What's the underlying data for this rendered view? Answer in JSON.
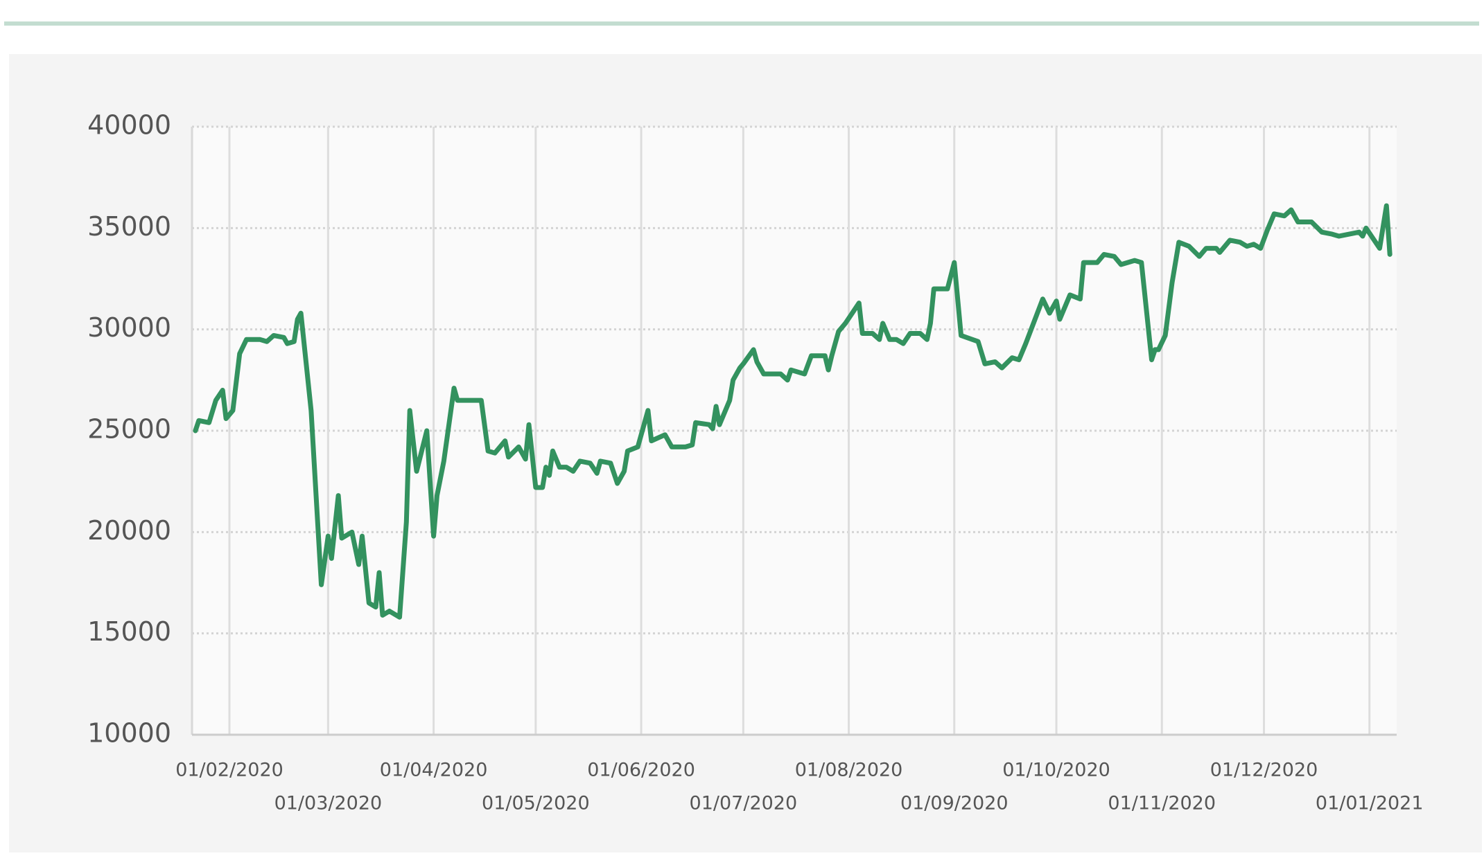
{
  "chart_data": {
    "type": "line",
    "x": [
      "2020-01-22",
      "2020-01-23",
      "2020-01-26",
      "2020-01-28",
      "2020-01-30",
      "2020-01-31",
      "2020-02-02",
      "2020-02-04",
      "2020-02-06",
      "2020-02-10",
      "2020-02-12",
      "2020-02-14",
      "2020-02-17",
      "2020-02-18",
      "2020-02-20",
      "2020-02-21",
      "2020-02-22",
      "2020-02-25",
      "2020-02-28",
      "2020-03-01",
      "2020-03-02",
      "2020-03-04",
      "2020-03-05",
      "2020-03-08",
      "2020-03-10",
      "2020-03-11",
      "2020-03-13",
      "2020-03-15",
      "2020-03-16",
      "2020-03-17",
      "2020-03-19",
      "2020-03-22",
      "2020-03-24",
      "2020-03-25",
      "2020-03-27",
      "2020-03-30",
      "2020-04-01",
      "2020-04-02",
      "2020-04-04",
      "2020-04-07",
      "2020-04-08",
      "2020-04-15",
      "2020-04-17",
      "2020-04-19",
      "2020-04-22",
      "2020-04-23",
      "2020-04-26",
      "2020-04-28",
      "2020-04-29",
      "2020-05-01",
      "2020-05-03",
      "2020-05-04",
      "2020-05-05",
      "2020-05-06",
      "2020-05-08",
      "2020-05-10",
      "2020-05-12",
      "2020-05-14",
      "2020-05-17",
      "2020-05-19",
      "2020-05-20",
      "2020-05-23",
      "2020-05-25",
      "2020-05-27",
      "2020-05-28",
      "2020-05-31",
      "2020-06-03",
      "2020-06-04",
      "2020-06-08",
      "2020-06-10",
      "2020-06-14",
      "2020-06-16",
      "2020-06-17",
      "2020-06-21",
      "2020-06-22",
      "2020-06-23",
      "2020-06-24",
      "2020-06-27",
      "2020-06-28",
      "2020-06-30",
      "2020-07-01",
      "2020-07-04",
      "2020-07-05",
      "2020-07-07",
      "2020-07-12",
      "2020-07-14",
      "2020-07-15",
      "2020-07-19",
      "2020-07-21",
      "2020-07-25",
      "2020-07-26",
      "2020-07-27",
      "2020-07-29",
      "2020-07-31",
      "2020-08-04",
      "2020-08-05",
      "2020-08-08",
      "2020-08-10",
      "2020-08-11",
      "2020-08-13",
      "2020-08-15",
      "2020-08-17",
      "2020-08-19",
      "2020-08-22",
      "2020-08-24",
      "2020-08-25",
      "2020-08-26",
      "2020-08-30",
      "2020-09-01",
      "2020-09-03",
      "2020-09-08",
      "2020-09-10",
      "2020-09-13",
      "2020-09-15",
      "2020-09-18",
      "2020-09-20",
      "2020-09-22",
      "2020-09-27",
      "2020-09-29",
      "2020-10-01",
      "2020-10-02",
      "2020-10-05",
      "2020-10-08",
      "2020-10-09",
      "2020-10-13",
      "2020-10-15",
      "2020-10-18",
      "2020-10-20",
      "2020-10-24",
      "2020-10-26",
      "2020-10-29",
      "2020-10-30",
      "2020-10-31",
      "2020-11-02",
      "2020-11-04",
      "2020-11-06",
      "2020-11-09",
      "2020-11-12",
      "2020-11-14",
      "2020-11-17",
      "2020-11-18",
      "2020-11-21",
      "2020-11-24",
      "2020-11-26",
      "2020-11-28",
      "2020-11-30",
      "2020-12-02",
      "2020-12-04",
      "2020-12-07",
      "2020-12-09",
      "2020-12-11",
      "2020-12-15",
      "2020-12-18",
      "2020-12-21",
      "2020-12-23",
      "2020-12-29",
      "2020-12-30",
      "2020-12-31",
      "2021-01-02",
      "2021-01-04",
      "2021-01-06",
      "2021-01-07"
    ],
    "series": [
      {
        "color": "#33925f",
        "values": [
          25000,
          25500,
          25400,
          26500,
          27000,
          25600,
          26000,
          28800,
          29500,
          29500,
          29400,
          29700,
          29600,
          29300,
          29400,
          30500,
          30800,
          26000,
          17400,
          19800,
          18700,
          21800,
          19700,
          20000,
          18400,
          19800,
          16500,
          16300,
          18000,
          15900,
          16100,
          15800,
          20500,
          26000,
          23000,
          25000,
          19800,
          21800,
          23500,
          27100,
          26500,
          26500,
          24000,
          23900,
          24500,
          23700,
          24200,
          23600,
          25300,
          22200,
          22200,
          23200,
          22800,
          24000,
          23200,
          23200,
          23000,
          23500,
          23400,
          22900,
          23500,
          23400,
          22400,
          23000,
          24000,
          24200,
          26000,
          24500,
          24800,
          24200,
          24200,
          24300,
          25400,
          25300,
          25100,
          26200,
          25300,
          26500,
          27500,
          28100,
          28300,
          29000,
          28400,
          27800,
          27800,
          27500,
          28000,
          27800,
          28700,
          28700,
          28000,
          28700,
          29900,
          30300,
          31300,
          29800,
          29800,
          29500,
          30300,
          29500,
          29500,
          29300,
          29800,
          29800,
          29500,
          30300,
          32000,
          32000,
          33300,
          29700,
          29400,
          28300,
          28400,
          28100,
          28600,
          28500,
          29300,
          31500,
          30800,
          31400,
          30500,
          31700,
          31500,
          33300,
          33300,
          33700,
          33600,
          33200,
          33400,
          33300,
          28500,
          29000,
          29000,
          29700,
          32300,
          34300,
          34100,
          33600,
          34000,
          34000,
          33800,
          34400,
          34300,
          34100,
          34200,
          34000,
          34900,
          35700,
          35600,
          35900,
          35300,
          35300,
          34800,
          34700,
          34600,
          34800,
          34600,
          35000,
          34500,
          34000,
          36100,
          33700
        ]
      }
    ],
    "xlim": [
      "2020-01-21",
      "2021-01-09"
    ],
    "xticks": [
      {
        "value": "2020-02-01",
        "label": "01/02/2020"
      },
      {
        "value": "2020-03-01",
        "label": "01/03/2020"
      },
      {
        "value": "2020-04-01",
        "label": "01/04/2020"
      },
      {
        "value": "2020-05-01",
        "label": "01/05/2020"
      },
      {
        "value": "2020-06-01",
        "label": "01/06/2020"
      },
      {
        "value": "2020-07-01",
        "label": "01/07/2020"
      },
      {
        "value": "2020-08-01",
        "label": "01/08/2020"
      },
      {
        "value": "2020-09-01",
        "label": "01/09/2020"
      },
      {
        "value": "2020-10-01",
        "label": "01/10/2020"
      },
      {
        "value": "2020-11-01",
        "label": "01/11/2020"
      },
      {
        "value": "2020-12-01",
        "label": "01/12/2020"
      },
      {
        "value": "2021-01-01",
        "label": "01/01/2021"
      }
    ],
    "ylim": [
      10000,
      40000
    ],
    "yticks": [
      10000,
      15000,
      20000,
      25000,
      30000,
      35000,
      40000
    ],
    "grid": true
  }
}
